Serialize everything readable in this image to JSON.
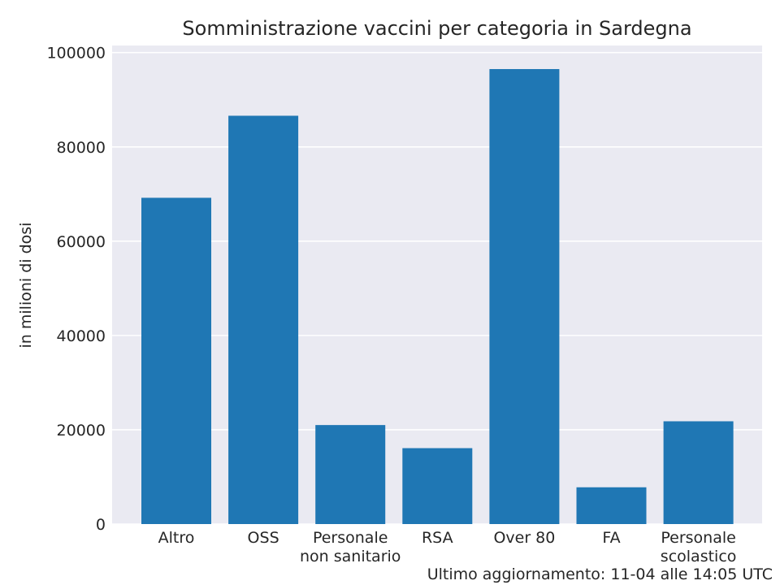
{
  "chart_data": {
    "type": "bar",
    "title": "Somministrazione vaccini per categoria in Sardegna",
    "xlabel": "",
    "ylabel": "in milioni di dosi",
    "categories": [
      [
        "Altro"
      ],
      [
        "OSS"
      ],
      [
        "Personale",
        "non sanitario"
      ],
      [
        "RSA"
      ],
      [
        "Over 80"
      ],
      [
        "FA"
      ],
      [
        "Personale",
        "scolastico"
      ]
    ],
    "values": [
      69200,
      86600,
      21000,
      16100,
      96500,
      7800,
      21800
    ],
    "ylim": [
      0,
      101500
    ],
    "yticks": [
      0,
      20000,
      40000,
      60000,
      80000,
      100000
    ],
    "ytick_labels": [
      "0",
      "20000",
      "40000",
      "60000",
      "80000",
      "100000"
    ],
    "grid": true,
    "legend": "none",
    "colors": {
      "bar": "#1f77b4",
      "plot_background": "#eaeaf2",
      "gridline": "#ffffff",
      "text": "#262626"
    }
  },
  "footnote": "Ultimo aggiornamento: 11-04 alle 14:05 UTC"
}
